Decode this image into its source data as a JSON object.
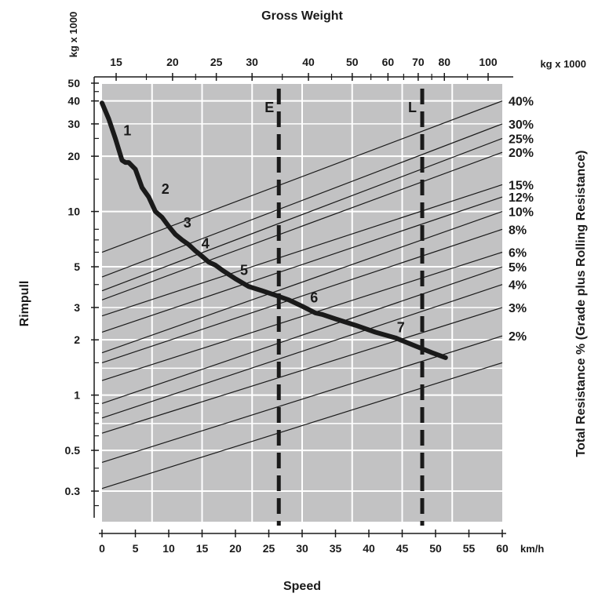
{
  "chart_data": {
    "type": "line",
    "top_title": "Gross Weight",
    "top_unit": "kg x 1000",
    "left_unit": "kg x 1000",
    "xlabel": "Speed",
    "x_unit": "km/h",
    "ylabel": "Rimpull",
    "right_label": "Total Resistance % (Grade plus Rolling Resistance)",
    "xlim": [
      0,
      60
    ],
    "ylim": [
      0.2,
      50
    ],
    "y_scale": "log",
    "grid": true,
    "x_ticks": [
      "0",
      "5",
      "10",
      "15",
      "20",
      "25",
      "30",
      "35",
      "40",
      "45",
      "50",
      "55",
      "60"
    ],
    "y_ticks": [
      {
        "value": 50,
        "label": "50"
      },
      {
        "value": 40,
        "label": "40"
      },
      {
        "value": 30,
        "label": "30"
      },
      {
        "value": 20,
        "label": "20"
      },
      {
        "value": 10,
        "label": "10"
      },
      {
        "value": 5,
        "label": "5"
      },
      {
        "value": 3,
        "label": "3"
      },
      {
        "value": 2,
        "label": "2"
      },
      {
        "value": 1,
        "label": "1"
      },
      {
        "value": 0.5,
        "label": "0.5"
      },
      {
        "value": 0.3,
        "label": "0.3"
      }
    ],
    "gross_weight_ticks": [
      {
        "value": 15,
        "label": "15"
      },
      {
        "value": 20,
        "label": "20"
      },
      {
        "value": 25,
        "label": "25"
      },
      {
        "value": 30,
        "label": "30"
      },
      {
        "value": 40,
        "label": "40"
      },
      {
        "value": 50,
        "label": "50"
      },
      {
        "value": 60,
        "label": "60"
      },
      {
        "value": 70,
        "label": "70"
      },
      {
        "value": 80,
        "label": "80"
      },
      {
        "value": 100,
        "label": "100"
      }
    ],
    "rimpull_curve": [
      [
        0,
        39
      ],
      [
        1,
        32
      ],
      [
        2,
        25
      ],
      [
        3,
        19
      ],
      [
        3.5,
        18.5
      ],
      [
        4,
        18.5
      ],
      [
        5,
        17
      ],
      [
        6,
        13.5
      ],
      [
        7,
        12
      ],
      [
        8,
        10
      ],
      [
        9,
        9.3
      ],
      [
        10,
        8.3
      ],
      [
        11,
        7.5
      ],
      [
        12,
        7
      ],
      [
        13,
        6.6
      ],
      [
        14,
        6.1
      ],
      [
        15,
        5.7
      ],
      [
        16,
        5.3
      ],
      [
        17,
        5.1
      ],
      [
        18,
        4.8
      ],
      [
        20,
        4.3
      ],
      [
        22,
        3.9
      ],
      [
        24,
        3.7
      ],
      [
        26,
        3.5
      ],
      [
        28,
        3.3
      ],
      [
        30,
        3.05
      ],
      [
        32,
        2.8
      ],
      [
        33,
        2.75
      ],
      [
        35,
        2.6
      ],
      [
        38,
        2.4
      ],
      [
        41,
        2.2
      ],
      [
        44,
        2.05
      ],
      [
        47,
        1.85
      ],
      [
        49.5,
        1.7
      ],
      [
        51.5,
        1.6
      ]
    ],
    "gear_labels": [
      {
        "label": "1",
        "x": 3.8,
        "y": 26
      },
      {
        "label": "2",
        "x": 9.5,
        "y": 12.5
      },
      {
        "label": "3",
        "x": 12.8,
        "y": 8.2
      },
      {
        "label": "4",
        "x": 15.5,
        "y": 6.3
      },
      {
        "label": "5",
        "x": 21.3,
        "y": 4.5
      },
      {
        "label": "6",
        "x": 31.8,
        "y": 3.2
      },
      {
        "label": "7",
        "x": 44.8,
        "y": 2.2
      }
    ],
    "resistance_lines": [
      {
        "label": "40%",
        "y_at_0": 6.0,
        "y_at_60": 40
      },
      {
        "label": "30%",
        "y_at_0": 4.4,
        "y_at_60": 30
      },
      {
        "label": "25%",
        "y_at_0": 3.7,
        "y_at_60": 25
      },
      {
        "label": "20%",
        "y_at_0": 3.3,
        "y_at_60": 21
      },
      {
        "label": "15%",
        "y_at_0": 2.7,
        "y_at_60": 14
      },
      {
        "label": "12%",
        "y_at_0": 2.2,
        "y_at_60": 12
      },
      {
        "label": "10%",
        "y_at_0": 1.7,
        "y_at_60": 10
      },
      {
        "label": "8%",
        "y_at_0": 1.5,
        "y_at_60": 8
      },
      {
        "label": "6%",
        "y_at_0": 1.2,
        "y_at_60": 6
      },
      {
        "label": "5%",
        "y_at_0": 0.9,
        "y_at_60": 5
      },
      {
        "label": "4%",
        "y_at_0": 0.75,
        "y_at_60": 4
      },
      {
        "label": "3%",
        "y_at_0": 0.62,
        "y_at_60": 3
      },
      {
        "label": "2%",
        "y_at_0": 0.43,
        "y_at_60": 2.1
      },
      {
        "label": "",
        "y_at_0": 0.31,
        "y_at_60": 1.5
      }
    ],
    "reference_lines": [
      {
        "label": "E",
        "x": 26.5
      },
      {
        "label": "L",
        "x": 48
      }
    ],
    "colors": {
      "plot_background": "#c2c2c3",
      "grid": "#ffffff",
      "curve": "#1a1a1a",
      "text": "#1a1a1a"
    }
  }
}
